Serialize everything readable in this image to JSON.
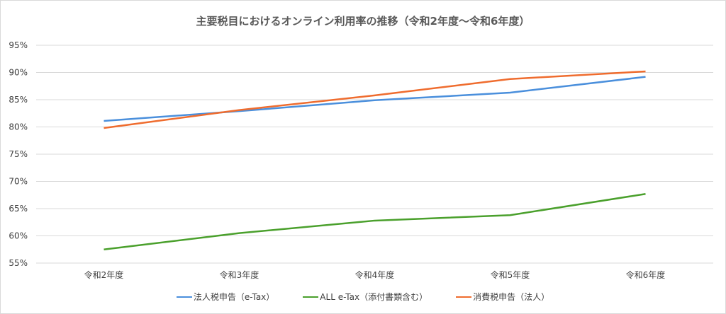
{
  "chart_data": {
    "type": "line",
    "title": "主要税目におけるオンライン利用率の推移（令和2年度～令和6年度）",
    "categories": [
      "令和2年度",
      "令和3年度",
      "令和4年度",
      "令和5年度",
      "令和6年度"
    ],
    "yticks": [
      "55%",
      "60%",
      "65%",
      "70%",
      "75%",
      "80%",
      "85%",
      "90%",
      "95%"
    ],
    "ylim": [
      55,
      95
    ],
    "grid": true,
    "legend_position": "bottom",
    "series": [
      {
        "name": "法人税申告（e-Tax）",
        "color": "#4a8fdc",
        "values": [
          81.1,
          82.9,
          84.9,
          86.3,
          89.2
        ]
      },
      {
        "name": "ALL e-Tax（添付書類含む）",
        "color": "#4aa02c",
        "values": [
          57.5,
          60.5,
          62.8,
          63.8,
          67.7
        ]
      },
      {
        "name": "消費税申告（法人）",
        "color": "#ef6c2e",
        "values": [
          79.8,
          83.1,
          85.8,
          88.8,
          90.2
        ]
      }
    ]
  }
}
